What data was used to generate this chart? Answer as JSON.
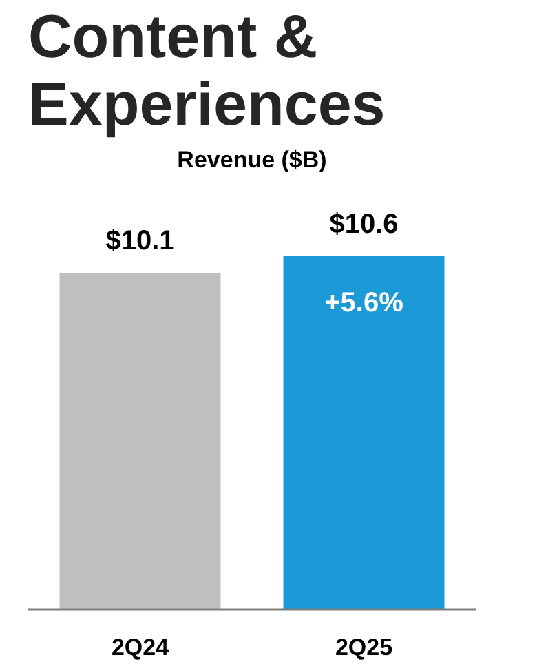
{
  "chart_data": {
    "type": "bar",
    "title": "Content & Experiences",
    "subtitle": "Revenue ($B)",
    "categories": [
      "2Q24",
      "2Q25"
    ],
    "values": [
      10.1,
      10.6
    ],
    "colors": [
      "#bfbfbf",
      "#1a9ad6"
    ],
    "value_labels": [
      "$10.1",
      "$10.6"
    ],
    "grid": false,
    "annotations": [
      {
        "text": "+5.6%",
        "x": "2Q25",
        "y": 10.6
      }
    ]
  }
}
